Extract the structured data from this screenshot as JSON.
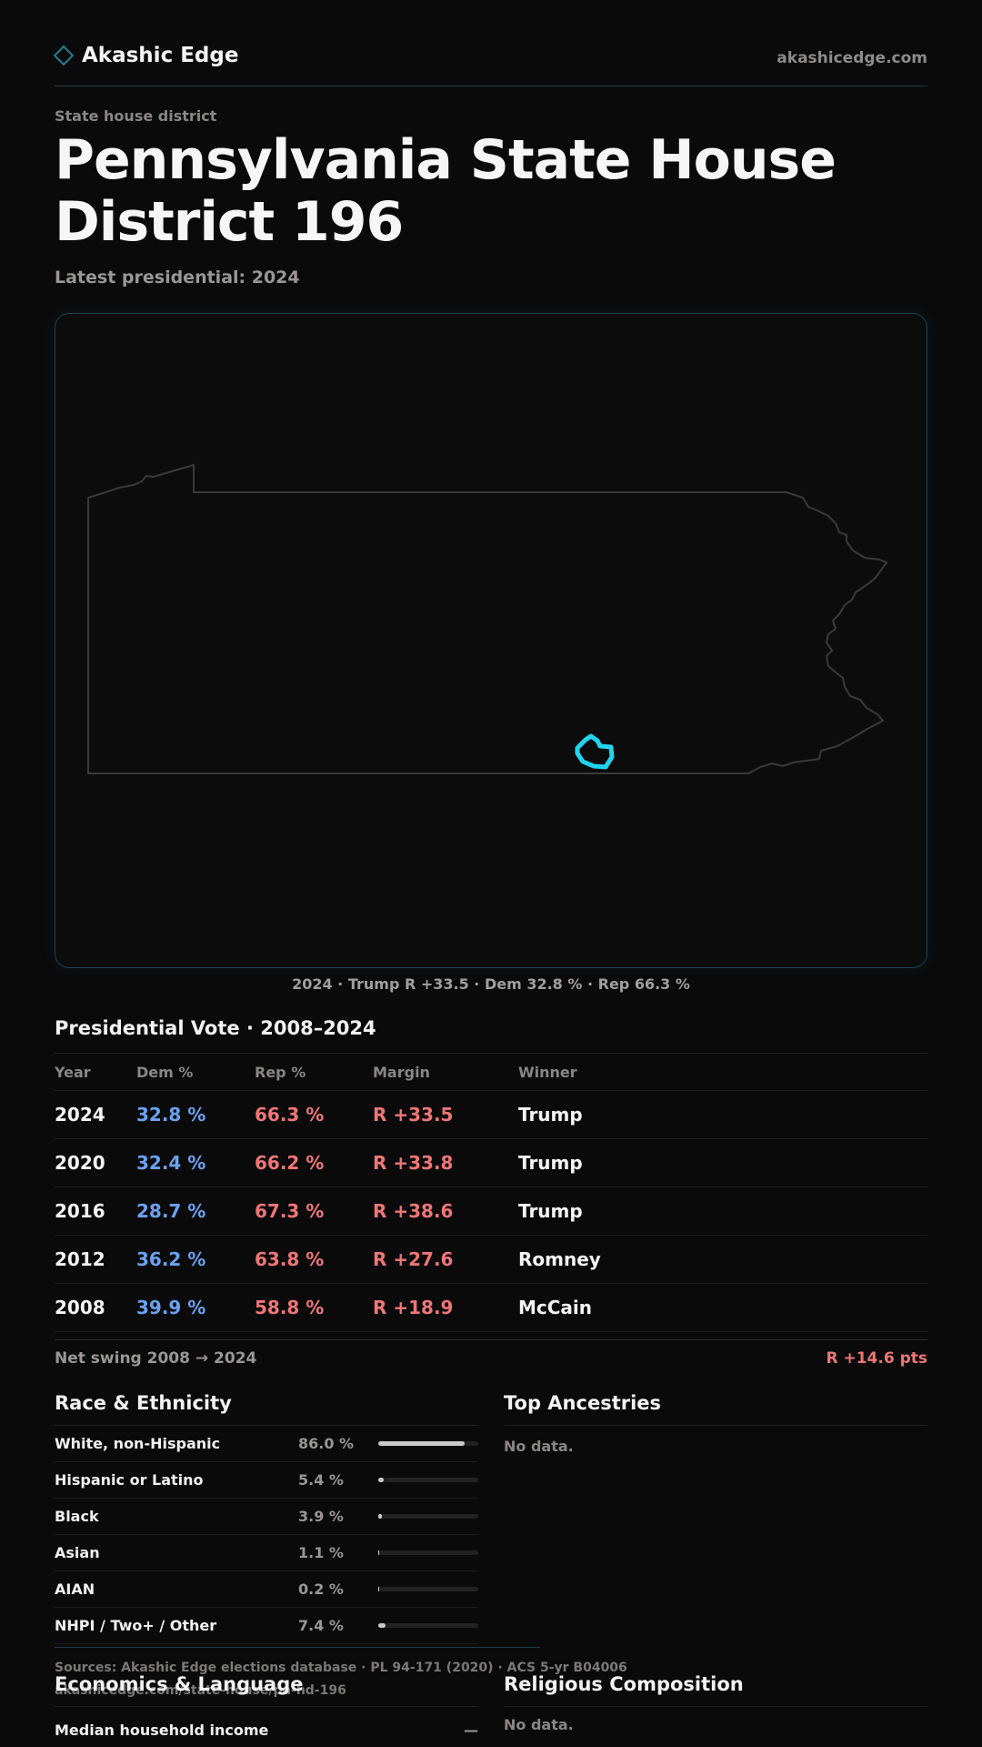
{
  "header": {
    "brand": "Akashic Edge",
    "site_url": "akashicedge.com"
  },
  "page": {
    "eyebrow": "State house district",
    "title": "Pennsylvania State House District 196",
    "subtitle": "Latest presidential: 2024"
  },
  "map": {
    "caption": "2024 · Trump R +33.5 · Dem 32.8 % · Rep 66.3 %",
    "outline_color": "#3a3a3a",
    "highlight_color": "#22d3ee"
  },
  "presidential": {
    "title": "Presidential Vote · 2008–2024",
    "columns": [
      "Year",
      "Dem %",
      "Rep %",
      "Margin",
      "Winner"
    ],
    "rows": [
      {
        "year": "2024",
        "dem": "32.8 %",
        "rep": "66.3 %",
        "margin": "R +33.5",
        "winner": "Trump"
      },
      {
        "year": "2020",
        "dem": "32.4 %",
        "rep": "66.2 %",
        "margin": "R +33.8",
        "winner": "Trump"
      },
      {
        "year": "2016",
        "dem": "28.7 %",
        "rep": "67.3 %",
        "margin": "R +38.6",
        "winner": "Trump"
      },
      {
        "year": "2012",
        "dem": "36.2 %",
        "rep": "63.8 %",
        "margin": "R +27.6",
        "winner": "Romney"
      },
      {
        "year": "2008",
        "dem": "39.9 %",
        "rep": "58.8 %",
        "margin": "R +18.9",
        "winner": "McCain"
      }
    ],
    "swing_label": "Net swing 2008 → 2024",
    "swing_value": "R +14.6 pts"
  },
  "race": {
    "title": "Race & Ethnicity",
    "rows": [
      {
        "label": "White, non-Hispanic",
        "pct": "86.0 %",
        "share": 0.86
      },
      {
        "label": "Hispanic or Latino",
        "pct": "5.4 %",
        "share": 0.054
      },
      {
        "label": "Black",
        "pct": "3.9 %",
        "share": 0.039
      },
      {
        "label": "Asian",
        "pct": "1.1 %",
        "share": 0.011
      },
      {
        "label": "AIAN",
        "pct": "0.2 %",
        "share": 0.002
      },
      {
        "label": "NHPI / Two+ / Other",
        "pct": "7.4 %",
        "share": 0.074
      }
    ]
  },
  "ancestries": {
    "title": "Top Ancestries",
    "empty": "No data."
  },
  "economics": {
    "title": "Economics & Language",
    "row_label": "Median household income",
    "row_value": "—"
  },
  "religion": {
    "title": "Religious Composition",
    "empty": "No data."
  },
  "footer": {
    "sources": "Sources: Akashic Edge elections database · PL 94-171 (2020) · ACS 5-yr B04006",
    "url": "akashicedge.com/state-house/pa-hd-196"
  }
}
